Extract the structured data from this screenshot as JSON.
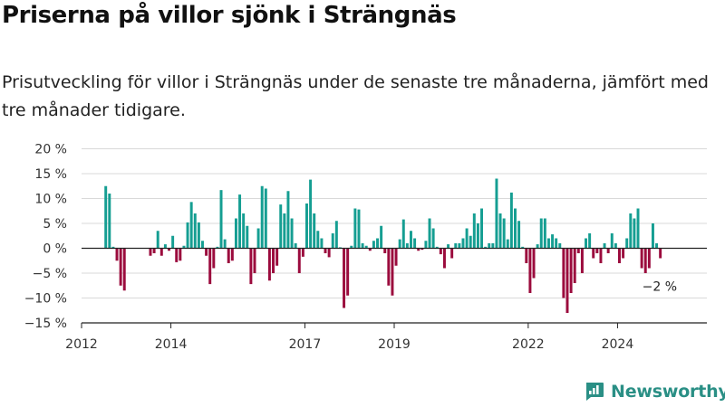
{
  "header": {
    "title": "Priserna på villor sjönk i Strängnäs",
    "subtitle": "Prisutveckling för villor i Strängnäs under de senaste tre månaderna, jämfört med tre månader tidigare."
  },
  "brand": {
    "name": "Newsworthy"
  },
  "chart_data": {
    "type": "bar",
    "title": "",
    "xlabel": "",
    "ylabel": "",
    "ylim": [
      -15,
      20
    ],
    "y_ticks": [
      -15,
      -10,
      -5,
      0,
      5,
      10,
      15,
      20
    ],
    "y_tick_labels": [
      "−15 %",
      "−10 %",
      "−5 %",
      "0 %",
      "5 %",
      "10 %",
      "15 %",
      "20 %"
    ],
    "x_range": [
      "2012-01",
      "2025-12"
    ],
    "x_ticks": [
      "2012",
      "2014",
      "2017",
      "2019",
      "2022",
      "2024"
    ],
    "grid": true,
    "colors": {
      "positive": "#159e92",
      "negative": "#9b0b3d"
    },
    "end_label": "−2 %",
    "series": [
      {
        "values": [
          {
            "x": "2012-07",
            "y": 12.5
          },
          {
            "x": "2012-08",
            "y": 11.0
          },
          {
            "x": "2012-09",
            "y": 0.3
          },
          {
            "x": "2012-10",
            "y": -2.5
          },
          {
            "x": "2012-11",
            "y": -7.5
          },
          {
            "x": "2012-12",
            "y": -8.5
          },
          {
            "x": "2013-07",
            "y": -1.5
          },
          {
            "x": "2013-08",
            "y": -1.0
          },
          {
            "x": "2013-09",
            "y": 3.5
          },
          {
            "x": "2013-10",
            "y": -1.5
          },
          {
            "x": "2013-11",
            "y": 0.8
          },
          {
            "x": "2013-12",
            "y": -0.5
          },
          {
            "x": "2014-01",
            "y": 2.5
          },
          {
            "x": "2014-02",
            "y": -2.8
          },
          {
            "x": "2014-03",
            "y": -2.5
          },
          {
            "x": "2014-04",
            "y": 0.5
          },
          {
            "x": "2014-05",
            "y": 5.2
          },
          {
            "x": "2014-06",
            "y": 9.3
          },
          {
            "x": "2014-07",
            "y": 7.0
          },
          {
            "x": "2014-08",
            "y": 5.2
          },
          {
            "x": "2014-09",
            "y": 1.5
          },
          {
            "x": "2014-10",
            "y": -1.5
          },
          {
            "x": "2014-11",
            "y": -7.2
          },
          {
            "x": "2014-12",
            "y": -4.0
          },
          {
            "x": "2015-01",
            "y": 0.3
          },
          {
            "x": "2015-02",
            "y": 11.7
          },
          {
            "x": "2015-03",
            "y": 1.8
          },
          {
            "x": "2015-04",
            "y": -3.0
          },
          {
            "x": "2015-05",
            "y": -2.5
          },
          {
            "x": "2015-06",
            "y": 6.0
          },
          {
            "x": "2015-07",
            "y": 10.8
          },
          {
            "x": "2015-08",
            "y": 7.0
          },
          {
            "x": "2015-09",
            "y": 4.5
          },
          {
            "x": "2015-10",
            "y": -7.2
          },
          {
            "x": "2015-11",
            "y": -5.0
          },
          {
            "x": "2015-12",
            "y": 4.0
          },
          {
            "x": "2016-01",
            "y": 12.5
          },
          {
            "x": "2016-02",
            "y": 12.0
          },
          {
            "x": "2016-03",
            "y": -6.5
          },
          {
            "x": "2016-04",
            "y": -5.0
          },
          {
            "x": "2016-05",
            "y": -3.5
          },
          {
            "x": "2016-06",
            "y": 8.8
          },
          {
            "x": "2016-07",
            "y": 7.0
          },
          {
            "x": "2016-08",
            "y": 11.5
          },
          {
            "x": "2016-09",
            "y": 6.0
          },
          {
            "x": "2016-10",
            "y": 1.0
          },
          {
            "x": "2016-11",
            "y": -5.0
          },
          {
            "x": "2016-12",
            "y": -1.7
          },
          {
            "x": "2017-01",
            "y": 9.0
          },
          {
            "x": "2017-02",
            "y": 13.8
          },
          {
            "x": "2017-03",
            "y": 7.0
          },
          {
            "x": "2017-04",
            "y": 3.5
          },
          {
            "x": "2017-05",
            "y": 2.0
          },
          {
            "x": "2017-06",
            "y": -1.0
          },
          {
            "x": "2017-07",
            "y": -1.8
          },
          {
            "x": "2017-08",
            "y": 3.0
          },
          {
            "x": "2017-09",
            "y": 5.5
          },
          {
            "x": "2017-10",
            "y": 0.2
          },
          {
            "x": "2017-11",
            "y": -12.0
          },
          {
            "x": "2017-12",
            "y": -9.5
          },
          {
            "x": "2018-01",
            "y": 0.5
          },
          {
            "x": "2018-02",
            "y": 8.0
          },
          {
            "x": "2018-03",
            "y": 7.8
          },
          {
            "x": "2018-04",
            "y": 1.0
          },
          {
            "x": "2018-05",
            "y": 0.5
          },
          {
            "x": "2018-06",
            "y": -0.5
          },
          {
            "x": "2018-07",
            "y": 1.5
          },
          {
            "x": "2018-08",
            "y": 2.0
          },
          {
            "x": "2018-09",
            "y": 4.5
          },
          {
            "x": "2018-10",
            "y": -1.0
          },
          {
            "x": "2018-11",
            "y": -7.5
          },
          {
            "x": "2018-12",
            "y": -9.5
          },
          {
            "x": "2019-01",
            "y": -3.5
          },
          {
            "x": "2019-02",
            "y": 1.8
          },
          {
            "x": "2019-03",
            "y": 5.8
          },
          {
            "x": "2019-04",
            "y": 1.0
          },
          {
            "x": "2019-05",
            "y": 3.5
          },
          {
            "x": "2019-06",
            "y": 2.0
          },
          {
            "x": "2019-07",
            "y": -0.5
          },
          {
            "x": "2019-08",
            "y": -0.3
          },
          {
            "x": "2019-09",
            "y": 1.5
          },
          {
            "x": "2019-10",
            "y": 6.0
          },
          {
            "x": "2019-11",
            "y": 4.0
          },
          {
            "x": "2019-12",
            "y": 0.3
          },
          {
            "x": "2020-01",
            "y": -1.2
          },
          {
            "x": "2020-02",
            "y": -4.0
          },
          {
            "x": "2020-03",
            "y": 0.8
          },
          {
            "x": "2020-04",
            "y": -2.0
          },
          {
            "x": "2020-05",
            "y": 1.0
          },
          {
            "x": "2020-06",
            "y": 1.0
          },
          {
            "x": "2020-07",
            "y": 2.0
          },
          {
            "x": "2020-08",
            "y": 4.0
          },
          {
            "x": "2020-09",
            "y": 2.5
          },
          {
            "x": "2020-10",
            "y": 7.0
          },
          {
            "x": "2020-11",
            "y": 5.0
          },
          {
            "x": "2020-12",
            "y": 8.0
          },
          {
            "x": "2021-01",
            "y": 0.3
          },
          {
            "x": "2021-02",
            "y": 1.0
          },
          {
            "x": "2021-03",
            "y": 1.0
          },
          {
            "x": "2021-04",
            "y": 14.0
          },
          {
            "x": "2021-05",
            "y": 7.0
          },
          {
            "x": "2021-06",
            "y": 6.0
          },
          {
            "x": "2021-07",
            "y": 1.8
          },
          {
            "x": "2021-08",
            "y": 11.2
          },
          {
            "x": "2021-09",
            "y": 8.0
          },
          {
            "x": "2021-10",
            "y": 5.5
          },
          {
            "x": "2021-11",
            "y": 0.3
          },
          {
            "x": "2021-12",
            "y": -3.0
          },
          {
            "x": "2022-01",
            "y": -9.0
          },
          {
            "x": "2022-02",
            "y": -6.0
          },
          {
            "x": "2022-03",
            "y": 0.8
          },
          {
            "x": "2022-04",
            "y": 6.0
          },
          {
            "x": "2022-05",
            "y": 6.0
          },
          {
            "x": "2022-06",
            "y": 2.0
          },
          {
            "x": "2022-07",
            "y": 2.8
          },
          {
            "x": "2022-08",
            "y": 2.0
          },
          {
            "x": "2022-09",
            "y": 1.0
          },
          {
            "x": "2022-10",
            "y": -10.0
          },
          {
            "x": "2022-11",
            "y": -13.0
          },
          {
            "x": "2022-12",
            "y": -9.0
          },
          {
            "x": "2023-01",
            "y": -7.0
          },
          {
            "x": "2023-02",
            "y": -1.0
          },
          {
            "x": "2023-03",
            "y": -5.0
          },
          {
            "x": "2023-04",
            "y": 2.0
          },
          {
            "x": "2023-05",
            "y": 3.0
          },
          {
            "x": "2023-06",
            "y": -2.0
          },
          {
            "x": "2023-07",
            "y": -1.0
          },
          {
            "x": "2023-08",
            "y": -3.0
          },
          {
            "x": "2023-09",
            "y": 1.0
          },
          {
            "x": "2023-10",
            "y": -1.0
          },
          {
            "x": "2023-11",
            "y": 3.0
          },
          {
            "x": "2023-12",
            "y": 1.0
          },
          {
            "x": "2024-01",
            "y": -3.0
          },
          {
            "x": "2024-02",
            "y": -2.0
          },
          {
            "x": "2024-03",
            "y": 2.0
          },
          {
            "x": "2024-04",
            "y": 7.0
          },
          {
            "x": "2024-05",
            "y": 6.0
          },
          {
            "x": "2024-06",
            "y": 8.0
          },
          {
            "x": "2024-07",
            "y": -4.0
          },
          {
            "x": "2024-08",
            "y": -5.0
          },
          {
            "x": "2024-09",
            "y": -4.0
          },
          {
            "x": "2024-10",
            "y": 5.0
          },
          {
            "x": "2024-11",
            "y": 1.0
          },
          {
            "x": "2024-12",
            "y": -2.0
          }
        ]
      }
    ]
  }
}
